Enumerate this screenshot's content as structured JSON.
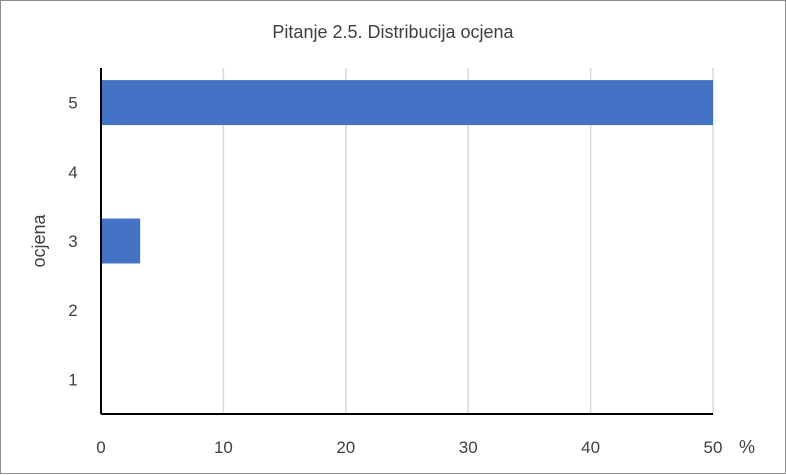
{
  "chart_data": {
    "type": "bar",
    "orientation": "horizontal",
    "title": "Pitanje 2.5. Distribucija ocjena",
    "xlabel": "%",
    "ylabel": "ocjena",
    "categories": [
      "1",
      "2",
      "3",
      "4",
      "5"
    ],
    "values": [
      0,
      0,
      3.2,
      0,
      50
    ],
    "xlim": [
      0,
      50
    ],
    "xticks": [
      0,
      10,
      20,
      30,
      40,
      50
    ],
    "grid": "vertical",
    "legend": "none",
    "bar_color": "#4472c4"
  }
}
